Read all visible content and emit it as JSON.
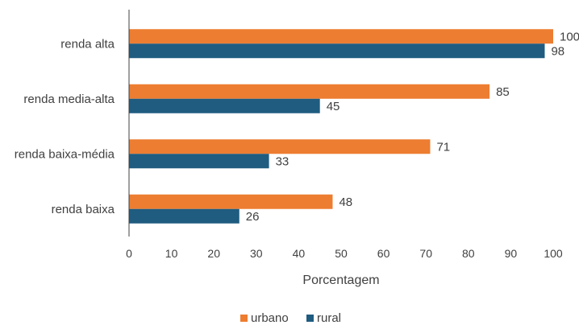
{
  "chart_data": {
    "type": "bar",
    "orientation": "horizontal",
    "categories": [
      "renda alta",
      "renda media-alta",
      "renda baixa-média",
      "renda baixa"
    ],
    "series": [
      {
        "name": "urbano",
        "values": [
          100,
          85,
          71,
          48
        ],
        "color": "#ED7D31"
      },
      {
        "name": "rural",
        "values": [
          98,
          45,
          33,
          26
        ],
        "color": "#1F5C80"
      }
    ],
    "xlabel": "Porcentagem",
    "xlim": [
      0,
      100
    ],
    "xticks": [
      0,
      10,
      20,
      30,
      40,
      50,
      60,
      70,
      80,
      90,
      100
    ],
    "grid": false,
    "legend_position": "bottom"
  }
}
